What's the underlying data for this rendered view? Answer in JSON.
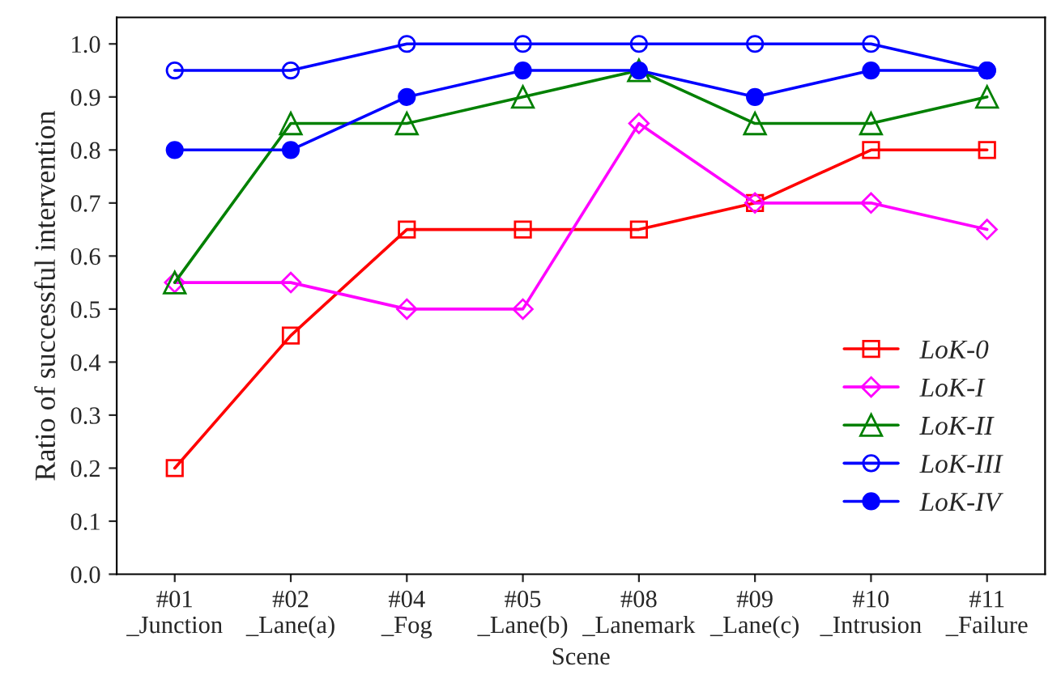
{
  "chart_data": {
    "type": "line",
    "xlabel": "Scene",
    "ylabel": "Ratio of successful intervention",
    "categories": [
      "#01\n_Junction",
      "#02\n_Lane(a)",
      "#04\n_Fog",
      "#05\n_Lane(b)",
      "#08\n_Lanemark",
      "#09\n_Lane(c)",
      "#10\n_Intrusion",
      "#11\n_Failure"
    ],
    "series": [
      {
        "name": "LoK-0",
        "color": "#ff0000",
        "marker": "square",
        "values": [
          0.2,
          0.45,
          0.65,
          0.65,
          0.65,
          0.7,
          0.8,
          0.8
        ]
      },
      {
        "name": "LoK-I",
        "color": "#ff00ff",
        "marker": "diamond",
        "values": [
          0.55,
          0.55,
          0.5,
          0.5,
          0.85,
          0.7,
          0.7,
          0.65
        ]
      },
      {
        "name": "LoK-II",
        "color": "#008000",
        "marker": "triangle",
        "values": [
          0.55,
          0.85,
          0.85,
          0.9,
          0.95,
          0.85,
          0.85,
          0.9
        ]
      },
      {
        "name": "LoK-III",
        "color": "#0000ff",
        "marker": "circle",
        "values": [
          0.95,
          0.95,
          1.0,
          1.0,
          1.0,
          1.0,
          1.0,
          0.95
        ]
      },
      {
        "name": "LoK-IV",
        "color": "#0000ff",
        "marker": "circle",
        "values": [
          0.8,
          0.8,
          0.9,
          0.95,
          0.95,
          0.9,
          0.95,
          0.95
        ]
      }
    ],
    "ylim": [
      0,
      1.05
    ],
    "yticks": [
      {
        "value": 0,
        "label": "0.0"
      },
      0.1,
      0.2,
      0.3,
      0.4,
      0.5,
      0.6,
      0.7,
      0.8,
      0.9,
      {
        "value": 1,
        "label": "1.0"
      }
    ],
    "grid": false,
    "legend": "bottom right",
    "line_style": "solid"
  }
}
